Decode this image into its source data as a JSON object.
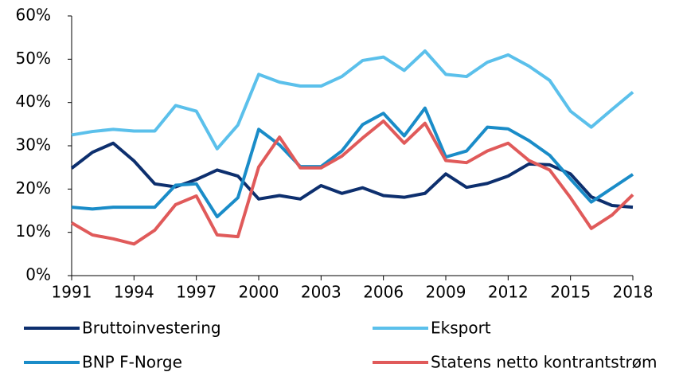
{
  "chart_data": {
    "type": "line",
    "x": [
      1991,
      1992,
      1993,
      1994,
      1995,
      1996,
      1997,
      1998,
      1999,
      2000,
      2001,
      2002,
      2003,
      2004,
      2005,
      2006,
      2007,
      2008,
      2009,
      2010,
      2011,
      2012,
      2013,
      2014,
      2015,
      2016,
      2017,
      2018
    ],
    "xlim": [
      1991,
      2018
    ],
    "xticks": [
      1991,
      1994,
      1997,
      2000,
      2003,
      2006,
      2009,
      2012,
      2015,
      2018
    ],
    "ylim": [
      0,
      60
    ],
    "yticks": [
      {
        "value": 0,
        "label": "0%"
      },
      {
        "value": 10,
        "label": "10%"
      },
      {
        "value": 20,
        "label": "20%"
      },
      {
        "value": 30,
        "label": "30%"
      },
      {
        "value": 40,
        "label": "40%"
      },
      {
        "value": 50,
        "label": "50%"
      },
      {
        "value": 60,
        "label": "60%"
      }
    ],
    "grid": false,
    "legend": "bottom",
    "series": [
      {
        "name": "Bruttoinvestering",
        "color": "#0d2f6e",
        "values": [
          24.8,
          28.5,
          30.6,
          26.5,
          21.2,
          20.5,
          22.2,
          24.4,
          23.0,
          17.7,
          18.5,
          17.7,
          20.8,
          19.0,
          20.3,
          18.5,
          18.1,
          19.0,
          23.5,
          20.4,
          21.3,
          23.0,
          25.8,
          25.6,
          23.5,
          18.2,
          16.2,
          15.8
        ]
      },
      {
        "name": "Eksport",
        "color": "#5bc0eb",
        "values": [
          32.5,
          33.3,
          33.8,
          33.4,
          33.4,
          39.3,
          38.0,
          29.3,
          34.8,
          46.5,
          44.7,
          43.8,
          43.8,
          46.0,
          49.7,
          50.5,
          47.4,
          51.9,
          46.5,
          46.0,
          49.3,
          51.0,
          48.4,
          45.1,
          38.0,
          34.3,
          38.4,
          42.4
        ]
      },
      {
        "name": "BNP F-Norge",
        "color": "#1a8cc8",
        "values": [
          15.8,
          15.4,
          15.8,
          15.8,
          15.8,
          20.9,
          21.2,
          13.6,
          18.0,
          33.8,
          30.2,
          25.2,
          25.2,
          28.8,
          34.9,
          37.5,
          32.3,
          38.7,
          27.4,
          28.8,
          34.3,
          33.9,
          31.2,
          27.8,
          22.3,
          17.0,
          20.2,
          23.4
        ]
      },
      {
        "name": "Statens netto kontrantstrøm",
        "color": "#e05a5a",
        "values": [
          12.2,
          9.4,
          8.5,
          7.3,
          10.5,
          16.4,
          18.4,
          9.4,
          9.0,
          25.1,
          32.0,
          24.9,
          24.9,
          27.6,
          31.8,
          35.7,
          30.6,
          35.2,
          26.6,
          26.1,
          28.8,
          30.6,
          26.6,
          24.4,
          18.0,
          10.9,
          14.0,
          18.7
        ]
      }
    ]
  }
}
